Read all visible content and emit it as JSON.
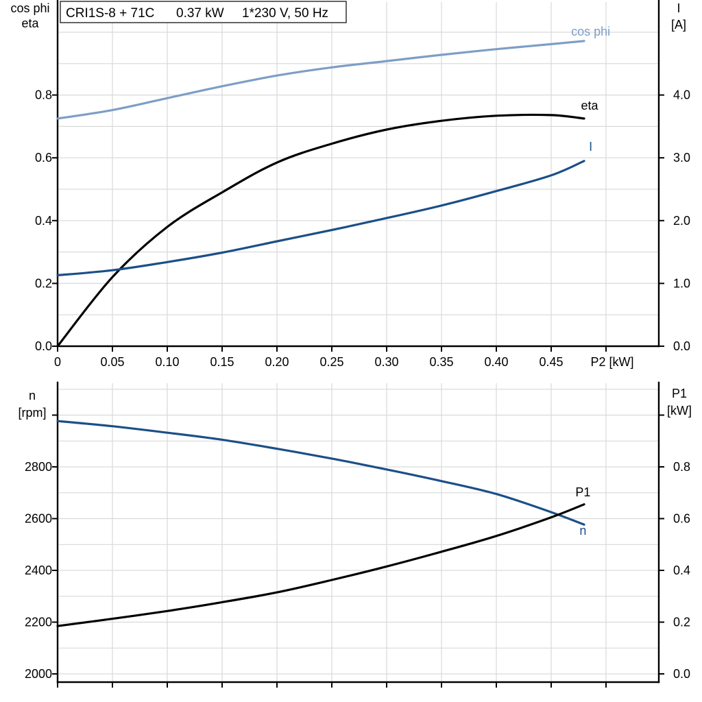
{
  "title_box": {
    "model": "CRI1S-8 + 71C",
    "power": "0.37 kW",
    "supply": "1*230 V, 50 Hz"
  },
  "colors": {
    "light_blue": "#7d9ec5",
    "dark_blue": "#1b4f88",
    "black": "#000000",
    "grid": "#d9d9d9",
    "axis": "#000000"
  },
  "chart_data": [
    {
      "id": "top-plot",
      "type": "line",
      "title": "CRI1S-8 + 71C 0.37 kW 1*230 V, 50 Hz",
      "grid": true,
      "legend": "curve-end-labels",
      "x_axis": {
        "label": "P2 [kW]",
        "xlim": [
          0,
          0.548
        ],
        "ticks": [
          0,
          0.05,
          0.1,
          0.15,
          0.2,
          0.25,
          0.3,
          0.35,
          0.4,
          0.45,
          0.5
        ],
        "tick_labels": [
          "0",
          "0.05",
          "0.10",
          "0.15",
          "0.20",
          "0.25",
          "0.30",
          "0.35",
          "0.40",
          "0.45",
          "P2 [kW]"
        ],
        "grid_min": 0.05,
        "grid_max": 0.5,
        "grid_step": 0.05
      },
      "left_axis": {
        "label_lines": [
          "cos phi",
          "eta"
        ],
        "ylim": [
          0,
          1.098
        ],
        "ticks": [
          0,
          0.2,
          0.4,
          0.6,
          0.8
        ],
        "tick_labels": [
          "0.0",
          "0.2",
          "0.4",
          "0.6",
          "0.8"
        ],
        "extra_ticks": [],
        "grid_min": 0.1,
        "grid_max": 1.0,
        "grid_step": 0.1
      },
      "right_axis": {
        "label_lines": [
          "I",
          "[A]"
        ],
        "ylim": [
          0,
          5.49
        ],
        "ticks": [
          0,
          1,
          2,
          3,
          4
        ],
        "tick_labels": [
          "0.0",
          "1.0",
          "2.0",
          "3.0",
          "4.0"
        ],
        "extra_ticks": []
      },
      "series": [
        {
          "name": "cos phi",
          "axis": "left",
          "color_key": "light_blue",
          "x": [
            0,
            0.05,
            0.1,
            0.15,
            0.2,
            0.25,
            0.3,
            0.35,
            0.4,
            0.45,
            0.48
          ],
          "y": [
            0.725,
            0.752,
            0.79,
            0.828,
            0.862,
            0.888,
            0.908,
            0.928,
            0.946,
            0.962,
            0.972
          ],
          "label": {
            "text": "cos phi",
            "x": 0.486,
            "y": 0.989
          }
        },
        {
          "name": "eta",
          "axis": "left",
          "color_key": "black",
          "x": [
            0,
            0.05,
            0.1,
            0.15,
            0.2,
            0.25,
            0.3,
            0.35,
            0.4,
            0.45,
            0.48
          ],
          "y": [
            0,
            0.22,
            0.38,
            0.49,
            0.585,
            0.645,
            0.69,
            0.718,
            0.734,
            0.736,
            0.725
          ],
          "label": {
            "text": "eta",
            "x": 0.485,
            "y": 0.753
          }
        },
        {
          "name": "I",
          "axis": "right",
          "color_key": "dark_blue",
          "x": [
            0,
            0.05,
            0.1,
            0.15,
            0.2,
            0.25,
            0.3,
            0.35,
            0.4,
            0.45,
            0.48
          ],
          "y": [
            1.13,
            1.21,
            1.34,
            1.49,
            1.67,
            1.85,
            2.04,
            2.24,
            2.47,
            2.72,
            2.95
          ],
          "label": {
            "text": "I",
            "x": 0.486,
            "y": 3.11
          }
        }
      ]
    },
    {
      "id": "bottom-plot",
      "type": "line",
      "title": "",
      "grid": true,
      "legend": "curve-end-labels",
      "x_axis": {
        "label": "",
        "xlim": [
          0,
          0.548
        ],
        "ticks": [
          0,
          0.05,
          0.1,
          0.15,
          0.2,
          0.25,
          0.3,
          0.35,
          0.4,
          0.45,
          0.5
        ],
        "tick_labels": [],
        "grid_min": 0.05,
        "grid_max": 0.5,
        "grid_step": 0.05
      },
      "left_axis": {
        "label_lines": [
          "n",
          "[rpm]"
        ],
        "ylim": [
          1968,
          3126
        ],
        "ticks": [
          2000,
          2200,
          2400,
          2600,
          2800
        ],
        "tick_labels": [
          "2000",
          "2200",
          "2400",
          "2600",
          "2800"
        ],
        "extra_ticks": [
          3000
        ],
        "grid_min": 2000,
        "grid_max": 3100,
        "grid_step": 100
      },
      "right_axis": {
        "label_lines": [
          "P1",
          "[kW]"
        ],
        "ylim": [
          -0.04,
          1.06
        ],
        "ticks": [
          0,
          0.2,
          0.4,
          0.6,
          0.8
        ],
        "tick_labels": [
          "0.0",
          "0.2",
          "0.4",
          "0.6",
          "0.8"
        ],
        "extra_ticks": [
          1.0
        ]
      },
      "series": [
        {
          "name": "n",
          "axis": "left",
          "color_key": "dark_blue",
          "x": [
            0,
            0.05,
            0.1,
            0.15,
            0.2,
            0.25,
            0.3,
            0.35,
            0.4,
            0.45,
            0.48
          ],
          "y": [
            2977,
            2957,
            2932,
            2905,
            2870,
            2832,
            2790,
            2745,
            2695,
            2625,
            2577
          ],
          "label": {
            "text": "n",
            "x": 0.479,
            "y": 2538
          }
        },
        {
          "name": "P1",
          "axis": "right",
          "color_key": "black",
          "x": [
            0,
            0.05,
            0.1,
            0.15,
            0.2,
            0.25,
            0.3,
            0.35,
            0.4,
            0.45,
            0.48
          ],
          "y": [
            0.185,
            0.213,
            0.243,
            0.277,
            0.315,
            0.363,
            0.415,
            0.472,
            0.533,
            0.605,
            0.655
          ],
          "label": {
            "text": "P1",
            "x": 0.479,
            "y": 0.686
          }
        }
      ]
    }
  ]
}
